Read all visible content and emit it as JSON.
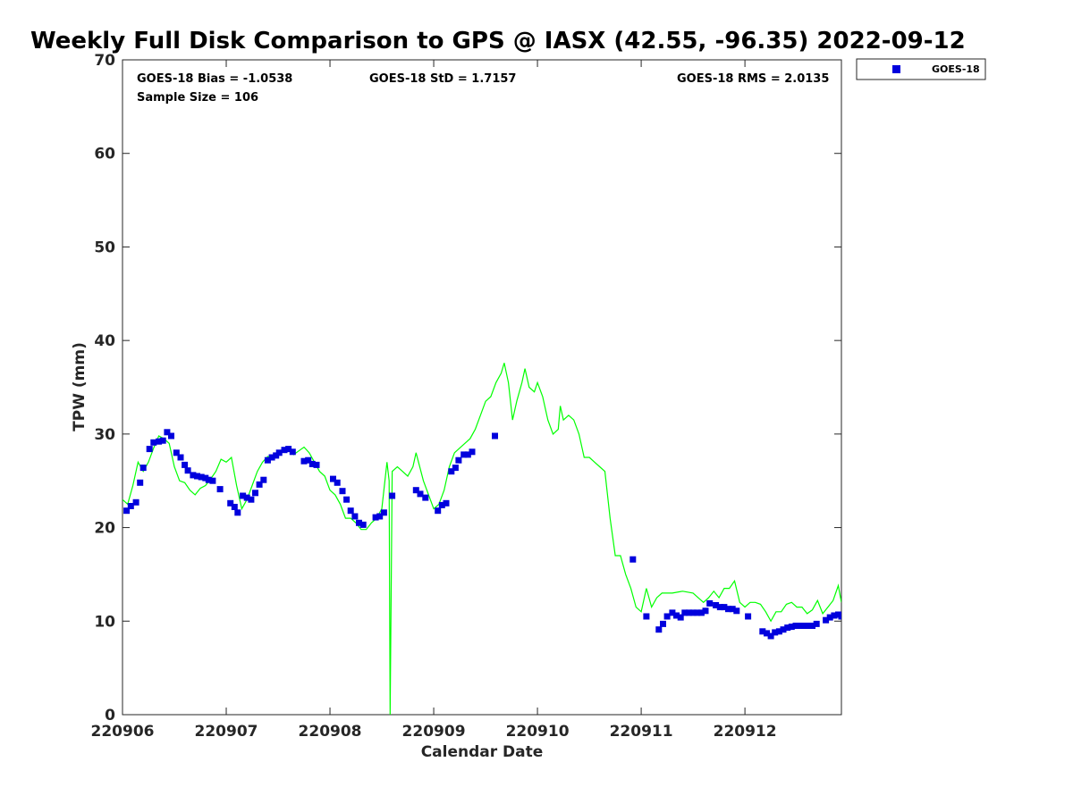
{
  "chart_data": {
    "type": "scatter",
    "title": "Weekly Full Disk Comparison to GPS @ IASX (42.55, -96.35) 2022-09-12",
    "xlabel": "Calendar Date",
    "ylabel": "TPW (mm)",
    "xlim": [
      220906,
      220912.93
    ],
    "ylim": [
      0,
      70
    ],
    "x_ticks": [
      220906,
      220907,
      220908,
      220909,
      220910,
      220911,
      220912
    ],
    "x_tick_labels": [
      "220906",
      "220907",
      "220908",
      "220909",
      "220910",
      "220911",
      "220912"
    ],
    "y_ticks": [
      0,
      10,
      20,
      30,
      40,
      50,
      60,
      70
    ],
    "y_tick_labels": [
      "0",
      "10",
      "20",
      "30",
      "40",
      "50",
      "60",
      "70"
    ],
    "grid": false,
    "legend_position": "top-right",
    "stats": {
      "bias": "GOES-18 Bias = -1.0538",
      "std": "GOES-18 StD = 1.7157",
      "rms": "GOES-18 RMS = 2.0135",
      "sample": "Sample Size = 106"
    },
    "series": [
      {
        "name": "GOES-18",
        "kind": "scatter",
        "marker": "square",
        "color": "#0000dd",
        "points": [
          [
            220906.04,
            21.8
          ],
          [
            220906.08,
            22.3
          ],
          [
            220906.13,
            22.7
          ],
          [
            220906.17,
            24.8
          ],
          [
            220906.2,
            26.4
          ],
          [
            220906.26,
            28.4
          ],
          [
            220906.3,
            29.1
          ],
          [
            220906.35,
            29.2
          ],
          [
            220906.39,
            29.3
          ],
          [
            220906.43,
            30.2
          ],
          [
            220906.47,
            29.8
          ],
          [
            220906.52,
            28.0
          ],
          [
            220906.56,
            27.5
          ],
          [
            220906.6,
            26.7
          ],
          [
            220906.63,
            26.1
          ],
          [
            220906.68,
            25.6
          ],
          [
            220906.72,
            25.5
          ],
          [
            220906.76,
            25.4
          ],
          [
            220906.8,
            25.3
          ],
          [
            220906.83,
            25.1
          ],
          [
            220906.87,
            25.0
          ],
          [
            220906.94,
            24.1
          ],
          [
            220907.04,
            22.6
          ],
          [
            220907.08,
            22.2
          ],
          [
            220907.11,
            21.6
          ],
          [
            220907.16,
            23.4
          ],
          [
            220907.2,
            23.2
          ],
          [
            220907.24,
            23.0
          ],
          [
            220907.28,
            23.7
          ],
          [
            220907.32,
            24.6
          ],
          [
            220907.36,
            25.1
          ],
          [
            220907.4,
            27.2
          ],
          [
            220907.44,
            27.5
          ],
          [
            220907.48,
            27.7
          ],
          [
            220907.51,
            28.0
          ],
          [
            220907.56,
            28.3
          ],
          [
            220907.6,
            28.4
          ],
          [
            220907.64,
            28.1
          ],
          [
            220907.75,
            27.1
          ],
          [
            220907.79,
            27.2
          ],
          [
            220907.83,
            26.8
          ],
          [
            220907.87,
            26.7
          ],
          [
            220908.03,
            25.2
          ],
          [
            220908.07,
            24.8
          ],
          [
            220908.12,
            23.9
          ],
          [
            220908.16,
            23.0
          ],
          [
            220908.2,
            21.8
          ],
          [
            220908.24,
            21.2
          ],
          [
            220908.28,
            20.5
          ],
          [
            220908.32,
            20.3
          ],
          [
            220908.44,
            21.1
          ],
          [
            220908.48,
            21.2
          ],
          [
            220908.52,
            21.6
          ],
          [
            220908.6,
            23.4
          ],
          [
            220908.83,
            24.0
          ],
          [
            220908.87,
            23.6
          ],
          [
            220908.92,
            23.2
          ],
          [
            220909.04,
            21.8
          ],
          [
            220909.08,
            22.4
          ],
          [
            220909.12,
            22.6
          ],
          [
            220909.17,
            26.0
          ],
          [
            220909.21,
            26.4
          ],
          [
            220909.24,
            27.2
          ],
          [
            220909.29,
            27.8
          ],
          [
            220909.33,
            27.8
          ],
          [
            220909.37,
            28.1
          ],
          [
            220909.59,
            29.8
          ],
          [
            220910.92,
            16.6
          ],
          [
            220911.05,
            10.5
          ],
          [
            220911.17,
            9.1
          ],
          [
            220911.21,
            9.7
          ],
          [
            220911.25,
            10.5
          ],
          [
            220911.3,
            10.9
          ],
          [
            220911.34,
            10.6
          ],
          [
            220911.38,
            10.4
          ],
          [
            220911.42,
            10.9
          ],
          [
            220911.46,
            10.9
          ],
          [
            220911.5,
            10.9
          ],
          [
            220911.54,
            10.9
          ],
          [
            220911.58,
            10.9
          ],
          [
            220911.62,
            11.1
          ],
          [
            220911.66,
            11.9
          ],
          [
            220911.72,
            11.7
          ],
          [
            220911.76,
            11.5
          ],
          [
            220911.8,
            11.5
          ],
          [
            220911.84,
            11.3
          ],
          [
            220911.88,
            11.3
          ],
          [
            220911.92,
            11.1
          ],
          [
            220912.03,
            10.5
          ],
          [
            220912.17,
            8.9
          ],
          [
            220912.21,
            8.7
          ],
          [
            220912.25,
            8.4
          ],
          [
            220912.29,
            8.8
          ],
          [
            220912.33,
            8.9
          ],
          [
            220912.37,
            9.1
          ],
          [
            220912.41,
            9.3
          ],
          [
            220912.45,
            9.4
          ],
          [
            220912.49,
            9.5
          ],
          [
            220912.53,
            9.5
          ],
          [
            220912.57,
            9.5
          ],
          [
            220912.61,
            9.5
          ],
          [
            220912.65,
            9.5
          ],
          [
            220912.69,
            9.7
          ],
          [
            220912.78,
            10.1
          ],
          [
            220912.82,
            10.4
          ],
          [
            220912.86,
            10.6
          ],
          [
            220912.9,
            10.7
          ],
          [
            220912.93,
            10.5
          ]
        ]
      },
      {
        "kind": "line",
        "color": "#00ff00",
        "points": [
          [
            220906.0,
            23.0
          ],
          [
            220906.05,
            22.5
          ],
          [
            220906.1,
            24.5
          ],
          [
            220906.15,
            27.0
          ],
          [
            220906.2,
            26.0
          ],
          [
            220906.25,
            27.0
          ],
          [
            220906.3,
            28.5
          ],
          [
            220906.35,
            29.8
          ],
          [
            220906.4,
            29.5
          ],
          [
            220906.45,
            29.0
          ],
          [
            220906.5,
            26.5
          ],
          [
            220906.55,
            25.0
          ],
          [
            220906.6,
            24.8
          ],
          [
            220906.65,
            24.0
          ],
          [
            220906.7,
            23.5
          ],
          [
            220906.75,
            24.2
          ],
          [
            220906.8,
            24.5
          ],
          [
            220906.85,
            25.2
          ],
          [
            220906.9,
            26.0
          ],
          [
            220906.95,
            27.3
          ],
          [
            220907.0,
            27.0
          ],
          [
            220907.05,
            27.5
          ],
          [
            220907.1,
            24.5
          ],
          [
            220907.15,
            22.0
          ],
          [
            220907.2,
            23.0
          ],
          [
            220907.25,
            24.5
          ],
          [
            220907.3,
            26.0
          ],
          [
            220907.35,
            27.0
          ],
          [
            220907.4,
            27.6
          ],
          [
            220907.45,
            27.5
          ],
          [
            220907.5,
            28.0
          ],
          [
            220907.55,
            28.2
          ],
          [
            220907.6,
            28.5
          ],
          [
            220907.65,
            27.8
          ],
          [
            220907.7,
            28.2
          ],
          [
            220907.75,
            28.6
          ],
          [
            220907.8,
            28.0
          ],
          [
            220907.85,
            27.0
          ],
          [
            220907.9,
            26.0
          ],
          [
            220907.95,
            25.5
          ],
          [
            220908.0,
            24.0
          ],
          [
            220908.05,
            23.5
          ],
          [
            220908.1,
            22.5
          ],
          [
            220908.15,
            21.0
          ],
          [
            220908.2,
            21.0
          ],
          [
            220908.25,
            20.5
          ],
          [
            220908.3,
            19.8
          ],
          [
            220908.35,
            19.8
          ],
          [
            220908.4,
            20.5
          ],
          [
            220908.45,
            21.0
          ],
          [
            220908.5,
            22.0
          ],
          [
            220908.55,
            27.0
          ],
          [
            220908.57,
            25.0
          ],
          [
            220908.58,
            0.0
          ],
          [
            220908.6,
            26.0
          ],
          [
            220908.65,
            26.5
          ],
          [
            220908.7,
            26.0
          ],
          [
            220908.75,
            25.5
          ],
          [
            220908.8,
            26.5
          ],
          [
            220908.83,
            28.0
          ],
          [
            220908.9,
            25.0
          ],
          [
            220908.95,
            23.5
          ],
          [
            220909.0,
            22.0
          ],
          [
            220909.05,
            22.5
          ],
          [
            220909.1,
            24.0
          ],
          [
            220909.15,
            26.5
          ],
          [
            220909.2,
            28.0
          ],
          [
            220909.25,
            28.5
          ],
          [
            220909.3,
            29.0
          ],
          [
            220909.35,
            29.5
          ],
          [
            220909.4,
            30.5
          ],
          [
            220909.45,
            32.0
          ],
          [
            220909.5,
            33.5
          ],
          [
            220909.55,
            34.0
          ],
          [
            220909.6,
            35.5
          ],
          [
            220909.65,
            36.5
          ],
          [
            220909.68,
            37.6
          ],
          [
            220909.72,
            35.5
          ],
          [
            220909.76,
            31.5
          ],
          [
            220909.8,
            33.5
          ],
          [
            220909.85,
            35.5
          ],
          [
            220909.88,
            37.0
          ],
          [
            220909.92,
            35.0
          ],
          [
            220909.97,
            34.5
          ],
          [
            220910.0,
            35.5
          ],
          [
            220910.05,
            34.0
          ],
          [
            220910.1,
            31.5
          ],
          [
            220910.15,
            30.0
          ],
          [
            220910.2,
            30.5
          ],
          [
            220910.22,
            33.0
          ],
          [
            220910.25,
            31.5
          ],
          [
            220910.3,
            32.0
          ],
          [
            220910.35,
            31.5
          ],
          [
            220910.4,
            30.0
          ],
          [
            220910.45,
            27.5
          ],
          [
            220910.5,
            27.5
          ],
          [
            220910.55,
            27.0
          ],
          [
            220910.6,
            26.5
          ],
          [
            220910.65,
            26.0
          ],
          [
            220910.7,
            21.0
          ],
          [
            220910.75,
            17.0
          ],
          [
            220910.8,
            17.0
          ],
          [
            220910.85,
            15.0
          ],
          [
            220910.9,
            13.5
          ],
          [
            220910.95,
            11.5
          ],
          [
            220911.0,
            11.0
          ],
          [
            220911.05,
            13.5
          ],
          [
            220911.1,
            11.5
          ],
          [
            220911.15,
            12.5
          ],
          [
            220911.2,
            13.0
          ],
          [
            220911.3,
            13.0
          ],
          [
            220911.4,
            13.2
          ],
          [
            220911.5,
            13.0
          ],
          [
            220911.6,
            12.0
          ],
          [
            220911.65,
            12.5
          ],
          [
            220911.7,
            13.2
          ],
          [
            220911.75,
            12.5
          ],
          [
            220911.8,
            13.5
          ],
          [
            220911.85,
            13.5
          ],
          [
            220911.9,
            14.3
          ],
          [
            220911.95,
            12.0
          ],
          [
            220912.0,
            11.5
          ],
          [
            220912.05,
            12.0
          ],
          [
            220912.1,
            12.0
          ],
          [
            220912.15,
            11.8
          ],
          [
            220912.2,
            11.0
          ],
          [
            220912.25,
            10.0
          ],
          [
            220912.3,
            11.0
          ],
          [
            220912.35,
            11.0
          ],
          [
            220912.4,
            11.8
          ],
          [
            220912.45,
            12.0
          ],
          [
            220912.5,
            11.5
          ],
          [
            220912.55,
            11.5
          ],
          [
            220912.6,
            10.8
          ],
          [
            220912.65,
            11.2
          ],
          [
            220912.7,
            12.2
          ],
          [
            220912.75,
            10.8
          ],
          [
            220912.8,
            11.5
          ],
          [
            220912.85,
            12.2
          ],
          [
            220912.9,
            13.8
          ],
          [
            220912.93,
            12.0
          ]
        ]
      }
    ]
  }
}
